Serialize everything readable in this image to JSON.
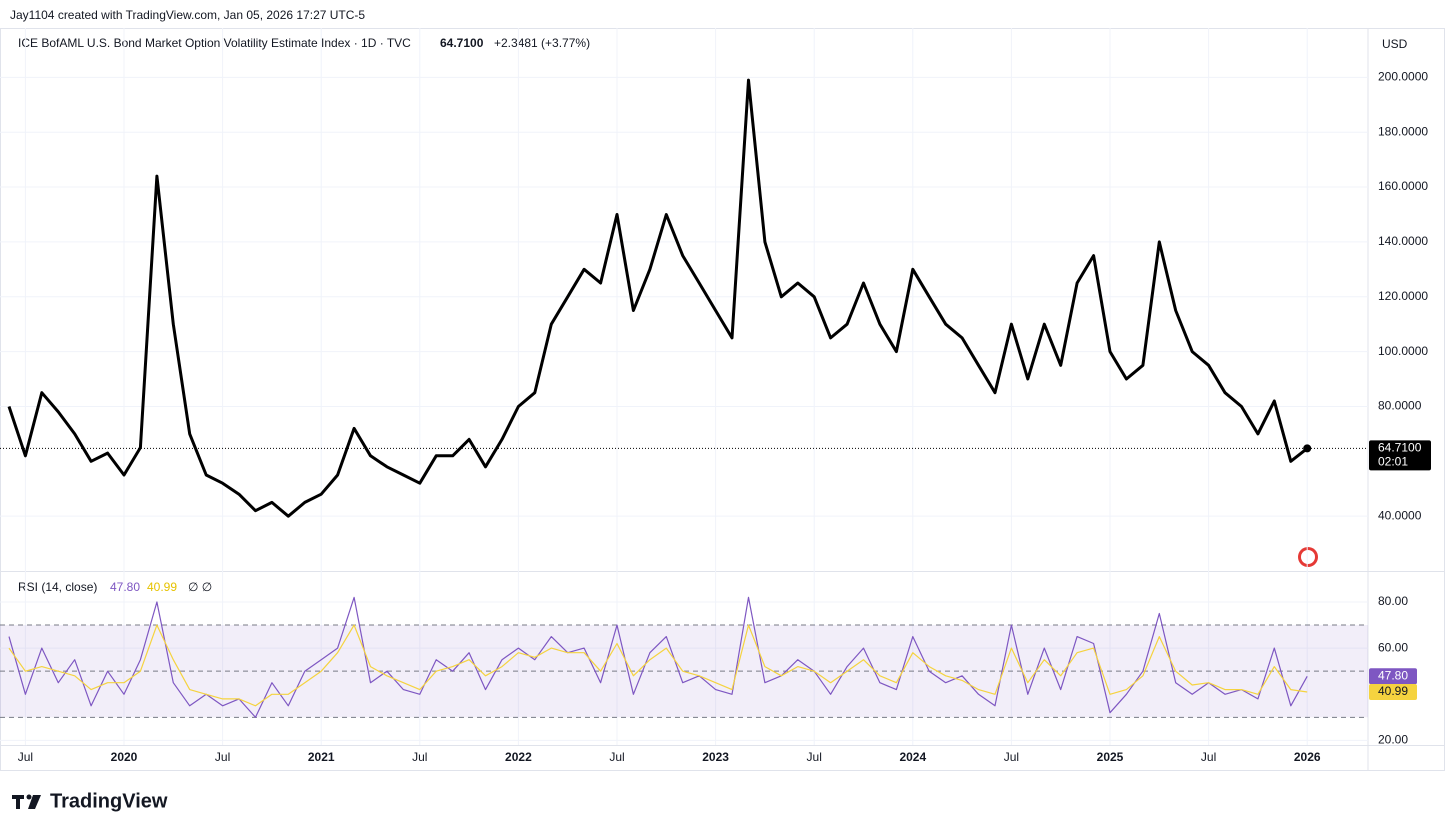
{
  "header": {
    "credit": "Jay1104 created with TradingView.com, Jan 05, 2026 17:27 UTC-5",
    "symbol": "ICE BofAML U.S. Bond Market Option Volatility Estimate Index · 1D · TVC",
    "last_price": "64.7100",
    "change": "+2.3481 (+3.77%)",
    "countdown": "02:01",
    "currency": "USD",
    "logo": "TradingView"
  },
  "xticks": [
    {
      "value": "2019-07",
      "label": "Jul"
    },
    {
      "value": "2020-01",
      "label": "2020"
    },
    {
      "value": "2020-07",
      "label": "Jul"
    },
    {
      "value": "2021-01",
      "label": "2021"
    },
    {
      "value": "2021-07",
      "label": "Jul"
    },
    {
      "value": "2022-01",
      "label": "2022"
    },
    {
      "value": "2022-07",
      "label": "Jul"
    },
    {
      "value": "2023-01",
      "label": "2023"
    },
    {
      "value": "2023-07",
      "label": "Jul"
    },
    {
      "value": "2024-01",
      "label": "2024"
    },
    {
      "value": "2024-07",
      "label": "Jul"
    },
    {
      "value": "2025-01",
      "label": "2025"
    },
    {
      "value": "2025-07",
      "label": "Jul"
    },
    {
      "value": "2026-01",
      "label": "2026"
    }
  ],
  "chart_data": [
    {
      "type": "line",
      "grid": true,
      "x": [
        "2019-06",
        "2019-07",
        "2019-08",
        "2019-09",
        "2019-10",
        "2019-11",
        "2019-12",
        "2020-01",
        "2020-02",
        "2020-03",
        "2020-04",
        "2020-05",
        "2020-06",
        "2020-07",
        "2020-08",
        "2020-09",
        "2020-10",
        "2020-11",
        "2020-12",
        "2021-01",
        "2021-02",
        "2021-03",
        "2021-04",
        "2021-05",
        "2021-06",
        "2021-07",
        "2021-08",
        "2021-09",
        "2021-10",
        "2021-11",
        "2021-12",
        "2022-01",
        "2022-02",
        "2022-03",
        "2022-04",
        "2022-05",
        "2022-06",
        "2022-07",
        "2022-08",
        "2022-09",
        "2022-10",
        "2022-11",
        "2022-12",
        "2023-01",
        "2023-02",
        "2023-03",
        "2023-04",
        "2023-05",
        "2023-06",
        "2023-07",
        "2023-08",
        "2023-09",
        "2023-10",
        "2023-11",
        "2023-12",
        "2024-01",
        "2024-02",
        "2024-03",
        "2024-04",
        "2024-05",
        "2024-06",
        "2024-07",
        "2024-08",
        "2024-09",
        "2024-10",
        "2024-11",
        "2024-12",
        "2025-01",
        "2025-02",
        "2025-03",
        "2025-04",
        "2025-05",
        "2025-06",
        "2025-07",
        "2025-08",
        "2025-09",
        "2025-10",
        "2025-11",
        "2025-12",
        "2026-01"
      ],
      "series": [
        {
          "color": "#000000",
          "values": [
            80,
            62,
            85,
            78,
            70,
            60,
            63,
            55,
            65,
            164,
            110,
            70,
            55,
            52,
            48,
            42,
            45,
            40,
            45,
            48,
            55,
            72,
            62,
            58,
            55,
            52,
            62,
            62,
            68,
            58,
            68,
            80,
            85,
            110,
            120,
            130,
            125,
            150,
            115,
            130,
            150,
            135,
            125,
            115,
            105,
            199,
            140,
            120,
            125,
            120,
            105,
            110,
            125,
            110,
            100,
            130,
            120,
            110,
            105,
            95,
            85,
            110,
            90,
            110,
            95,
            125,
            135,
            100,
            90,
            95,
            140,
            115,
            100,
            95,
            85,
            80,
            70,
            82,
            60,
            64.71
          ]
        }
      ],
      "ylim": [
        20,
        218
      ],
      "yticks": [
        {
          "value": 40,
          "label": "40.0000"
        },
        {
          "value": 80,
          "label": "80.0000"
        },
        {
          "value": 100,
          "label": "100.0000"
        },
        {
          "value": 120,
          "label": "120.0000"
        },
        {
          "value": 140,
          "label": "140.0000"
        },
        {
          "value": 160,
          "label": "160.0000"
        },
        {
          "value": 180,
          "label": "180.0000"
        },
        {
          "value": 200,
          "label": "200.0000"
        }
      ]
    },
    {
      "type": "line",
      "title": "RSI (14, close)",
      "rsi_value": "47.80",
      "signal_value": "40.99",
      "flags": "∅ ∅",
      "upper_band": 70,
      "middle_band": 50,
      "lower_band": 30,
      "band_color": "#7e57c2",
      "series": [
        {
          "color": "#7e57c2",
          "values": [
            65,
            40,
            60,
            45,
            55,
            35,
            50,
            40,
            55,
            80,
            45,
            35,
            40,
            35,
            38,
            30,
            45,
            35,
            50,
            55,
            60,
            82,
            45,
            50,
            42,
            40,
            55,
            50,
            58,
            42,
            55,
            60,
            55,
            65,
            58,
            60,
            45,
            70,
            40,
            58,
            65,
            45,
            48,
            42,
            40,
            82,
            45,
            48,
            55,
            50,
            40,
            52,
            60,
            45,
            42,
            65,
            50,
            45,
            48,
            40,
            35,
            70,
            40,
            60,
            42,
            65,
            62,
            32,
            40,
            50,
            75,
            45,
            40,
            45,
            40,
            42,
            38,
            60,
            35,
            47.8
          ]
        },
        {
          "color": "#f5d33f",
          "values": [
            60,
            50,
            52,
            50,
            48,
            42,
            45,
            45,
            50,
            70,
            55,
            42,
            40,
            38,
            38,
            35,
            40,
            40,
            45,
            50,
            58,
            70,
            52,
            48,
            45,
            42,
            50,
            52,
            55,
            48,
            52,
            58,
            56,
            60,
            58,
            58,
            50,
            62,
            48,
            55,
            60,
            50,
            48,
            45,
            42,
            70,
            52,
            48,
            52,
            50,
            45,
            50,
            55,
            48,
            45,
            58,
            52,
            48,
            46,
            42,
            40,
            60,
            45,
            55,
            48,
            58,
            60,
            40,
            42,
            48,
            65,
            50,
            44,
            45,
            42,
            42,
            40,
            52,
            42,
            40.99
          ]
        }
      ],
      "ylim": [
        18,
        93
      ],
      "yticks": [
        {
          "value": 20,
          "label": "20.00"
        },
        {
          "value": 60,
          "label": "60.00"
        },
        {
          "value": 80,
          "label": "80.00"
        }
      ]
    }
  ]
}
